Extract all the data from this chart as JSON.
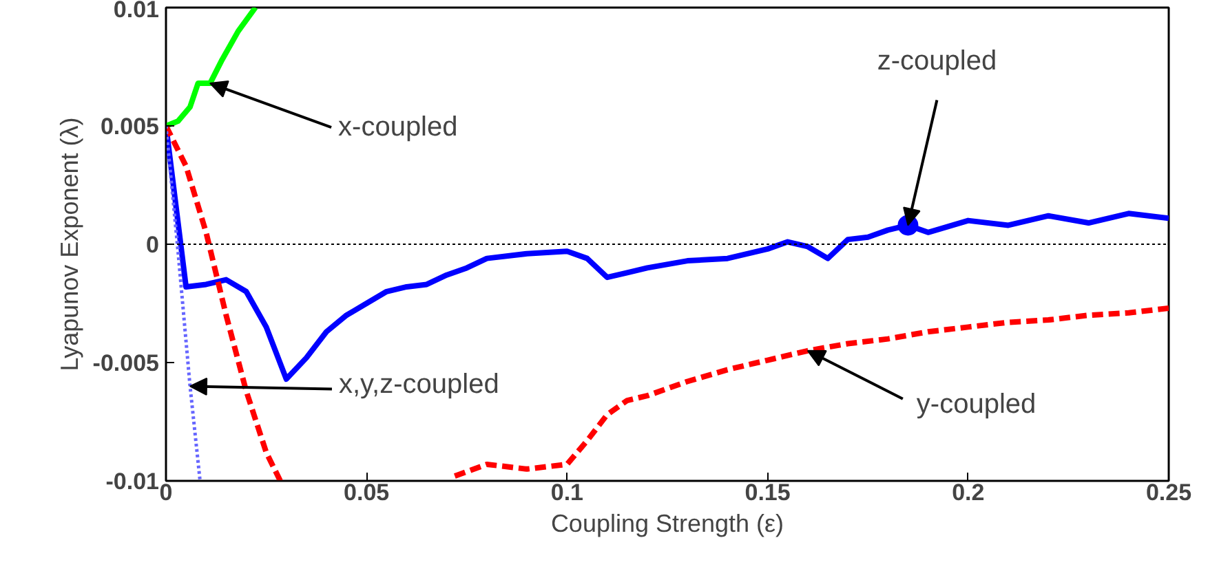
{
  "chart_data": {
    "type": "line",
    "xlabel": "Coupling Strength (ε)",
    "ylabel": "Lyapunov Exponent (λ)",
    "xlim": [
      0,
      0.25
    ],
    "ylim": [
      -0.01,
      0.01
    ],
    "xticks": [
      0,
      0.05,
      0.1,
      0.15,
      0.2,
      0.25
    ],
    "yticks": [
      -0.01,
      -0.005,
      0,
      0.005,
      0.01
    ],
    "grid": false,
    "series": [
      {
        "color": "#00ff00",
        "line_style": "solid",
        "x": [
          0,
          0.003,
          0.006,
          0.008,
          0.011,
          0.014,
          0.018,
          0.0223
        ],
        "values": [
          0.005,
          0.0052,
          0.0058,
          0.0068,
          0.0068,
          0.0078,
          0.009,
          0.01
        ]
      },
      {
        "color": "#0000ff",
        "line_style": "solid",
        "x": [
          0,
          0.005,
          0.01,
          0.015,
          0.02,
          0.025,
          0.03,
          0.035,
          0.04,
          0.045,
          0.05,
          0.055,
          0.06,
          0.065,
          0.07,
          0.075,
          0.08,
          0.09,
          0.1,
          0.105,
          0.11,
          0.115,
          0.12,
          0.13,
          0.14,
          0.15,
          0.155,
          0.16,
          0.165,
          0.17,
          0.175,
          0.18,
          0.185,
          0.19,
          0.2,
          0.21,
          0.22,
          0.23,
          0.24,
          0.25
        ],
        "values": [
          0.005,
          -0.0018,
          -0.0017,
          -0.0015,
          -0.002,
          -0.0035,
          -0.0057,
          -0.0048,
          -0.0037,
          -0.003,
          -0.0025,
          -0.002,
          -0.0018,
          -0.0017,
          -0.0013,
          -0.001,
          -0.0006,
          -0.0004,
          -0.0003,
          -0.0006,
          -0.0014,
          -0.0012,
          -0.001,
          -0.0007,
          -0.0006,
          -0.0002,
          0.0001,
          -0.0001,
          -0.0006,
          0.0002,
          0.0003,
          0.0006,
          0.0008,
          0.0005,
          0.001,
          0.0008,
          0.0012,
          0.0009,
          0.0013,
          0.0011
        ]
      },
      {
        "color": "#ff0000",
        "line_style": "dashed",
        "x": [
          0,
          0.005,
          0.01,
          0.015,
          0.02,
          0.025,
          0.0285,
          0.05,
          0.072,
          0.08,
          0.09,
          0.1,
          0.105,
          0.11,
          0.115,
          0.12,
          0.13,
          0.14,
          0.15,
          0.16,
          0.17,
          0.18,
          0.19,
          0.2,
          0.21,
          0.22,
          0.23,
          0.24,
          0.25
        ],
        "values": [
          0.005,
          0.0033,
          0.0005,
          -0.003,
          -0.0062,
          -0.0088,
          -0.01,
          null,
          -0.0098,
          -0.0093,
          -0.0095,
          -0.0093,
          -0.0083,
          -0.0072,
          -0.0066,
          -0.0064,
          -0.0058,
          -0.0053,
          -0.0049,
          -0.0045,
          -0.0042,
          -0.004,
          -0.0037,
          -0.0035,
          -0.0033,
          -0.0032,
          -0.003,
          -0.0029,
          -0.0027
        ]
      },
      {
        "color": "#6666ff",
        "line_style": "dotted",
        "x": [
          0,
          0.003,
          0.006,
          0.0085
        ],
        "values": [
          0.005,
          -0.0003,
          -0.006,
          -0.01
        ]
      },
      {
        "type": "scatter",
        "marker": "circle",
        "color": "#0000ff",
        "x": [
          0.185
        ],
        "values": [
          0.0008
        ]
      }
    ],
    "ref_lines": [
      {
        "axis": "y",
        "value": 0,
        "color": "#000000",
        "line_style": "dotted"
      }
    ],
    "annotations": [
      {
        "text": "x-coupled",
        "x": 0.011,
        "y": 0.0068
      },
      {
        "text": "z-coupled",
        "x": 0.185,
        "y": 0.0008
      },
      {
        "text": "x,y,z-coupled",
        "x": 0.006,
        "y": -0.006
      },
      {
        "text": "y-coupled",
        "x": 0.16,
        "y": -0.0045
      }
    ]
  }
}
